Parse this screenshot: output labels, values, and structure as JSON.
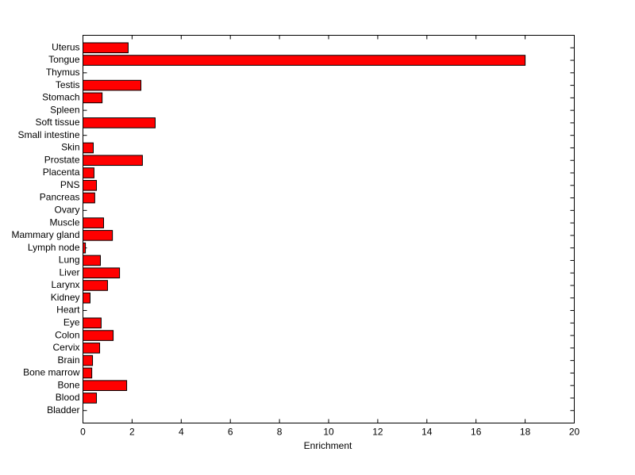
{
  "chart_data": {
    "type": "barh",
    "x_label": "Enrichment",
    "categories": [
      "Bladder",
      "Blood",
      "Bone",
      "Bone marrow",
      "Brain",
      "Cervix",
      "Colon",
      "Eye",
      "Heart",
      "Kidney",
      "Larynx",
      "Liver",
      "Lung",
      "Lymph node",
      "Mammary gland",
      "Muscle",
      "Ovary",
      "Pancreas",
      "PNS",
      "Placenta",
      "Prostate",
      "Skin",
      "Small intestine",
      "Soft tissue",
      "Spleen",
      "Stomach",
      "Testis",
      "Thymus",
      "Tongue",
      "Uterus"
    ],
    "values": [
      0,
      0.55,
      1.78,
      0.36,
      0.39,
      0.68,
      1.23,
      0.74,
      0,
      0.29,
      1.0,
      1.49,
      0.71,
      0.1,
      1.2,
      0.84,
      0,
      0.48,
      0.55,
      0.45,
      2.42,
      0.42,
      0,
      2.94,
      0,
      0.78,
      2.36,
      0,
      18.0,
      1.84
    ],
    "color": "#ff0000",
    "xlim": [
      0,
      20
    ],
    "xticks": [
      0,
      2,
      4,
      6,
      8,
      10,
      12,
      14,
      16,
      18,
      20
    ]
  }
}
